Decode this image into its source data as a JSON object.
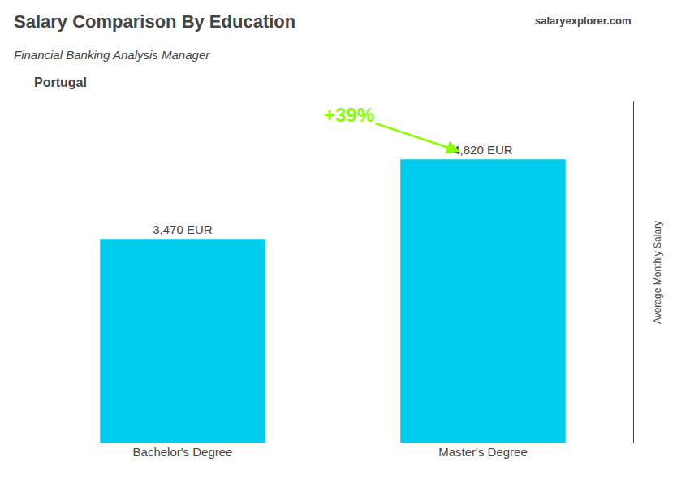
{
  "chart_data": {
    "type": "bar",
    "title": "Salary Comparison By Education",
    "subtitle": "Financial Banking Analysis Manager",
    "ylabel": "Average Monthly Salary",
    "categories": [
      "Bachelor's Degree",
      "Master's Degree"
    ],
    "values": [
      3470,
      4820
    ],
    "value_labels": [
      "3,470 EUR",
      "4,820 EUR"
    ],
    "data_labels": true,
    "color": "#00CCEE",
    "ylim": [
      0,
      5800
    ],
    "tick_labels": "x",
    "grid": false,
    "annotations": {
      "country": "Portugal",
      "watermark": [
        "salary",
        "explorer",
        ".com"
      ],
      "change": {
        "text": "+39%",
        "color": "#88FF00"
      }
    }
  }
}
